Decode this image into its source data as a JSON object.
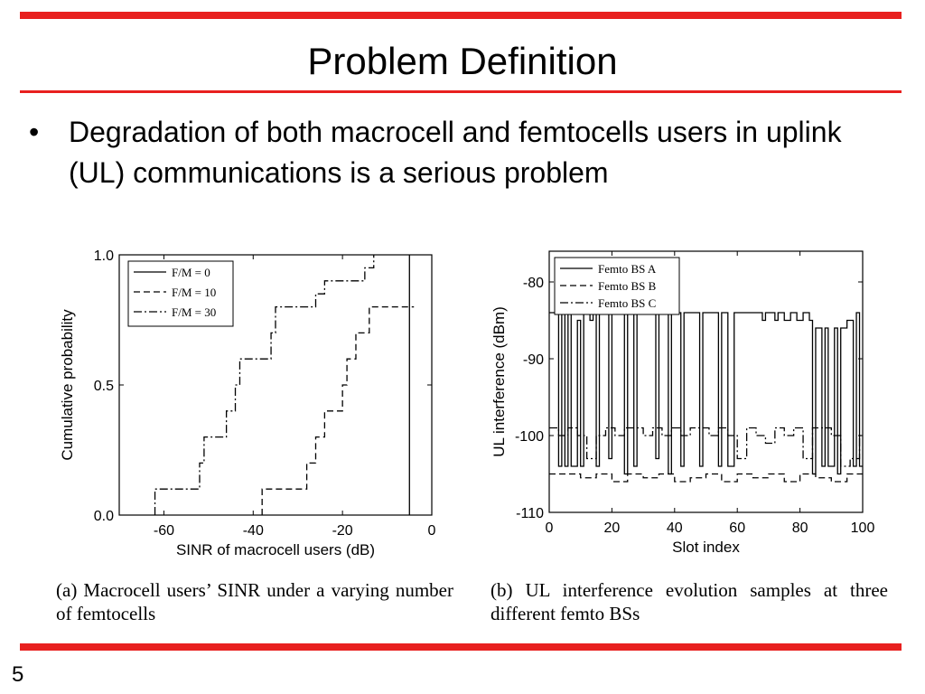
{
  "slide": {
    "title": "Problem Definition",
    "bullet": "Degradation of both macrocell and femtocells users in uplink (UL) communications is a serious problem",
    "page_number": "5",
    "accent_color": "#e8201f"
  },
  "figure_a": {
    "caption": "(a) Macrocell users’ SINR under a varying number of femtocells"
  },
  "figure_b": {
    "caption": "(b) UL interference evolution samples at three different femto BSs"
  },
  "chart_data": [
    {
      "id": "a",
      "type": "line",
      "xlabel": "SINR of macrocell users (dB)",
      "ylabel": "Cumulative probability",
      "xlim": [
        -70,
        0
      ],
      "ylim": [
        0,
        1
      ],
      "xticks": [
        -60,
        -40,
        -20,
        0
      ],
      "yticks": [
        0.0,
        0.5,
        1.0
      ],
      "ytick_labels": [
        "0.0",
        "0.5",
        "1.0"
      ],
      "legend_position": "top-left",
      "series": [
        {
          "name": "F/M = 0",
          "dash": "solid",
          "step": true,
          "x": [
            -5,
            -5
          ],
          "y": [
            0.0,
            1.0
          ]
        },
        {
          "name": "F/M = 10",
          "dash": "dashed",
          "step": true,
          "x": [
            -38,
            -38,
            -28,
            -26,
            -24,
            -20,
            -19,
            -17,
            -14,
            -12,
            -4
          ],
          "y": [
            0.0,
            0.1,
            0.2,
            0.3,
            0.4,
            0.5,
            0.6,
            0.7,
            0.8,
            0.8,
            0.8
          ]
        },
        {
          "name": "F/M = 30",
          "dash": "dashdot",
          "step": true,
          "x": [
            -62,
            -62,
            -52,
            -51,
            -46,
            -44,
            -43,
            -36,
            -35,
            -26,
            -24,
            -17,
            -15,
            -13
          ],
          "y": [
            0.0,
            0.1,
            0.2,
            0.3,
            0.4,
            0.5,
            0.6,
            0.7,
            0.8,
            0.85,
            0.9,
            0.9,
            0.95,
            1.0
          ]
        }
      ]
    },
    {
      "id": "b",
      "type": "line",
      "xlabel": "Slot index",
      "ylabel": "UL interference (dBm)",
      "xlim": [
        0,
        100
      ],
      "ylim": [
        -110,
        -76
      ],
      "xticks": [
        0,
        20,
        40,
        60,
        80,
        100
      ],
      "yticks": [
        -110,
        -100,
        -90,
        -80
      ],
      "legend_position": "top-left",
      "series": [
        {
          "name": "Femto BS A",
          "dash": "solid",
          "step": true,
          "x": [
            0,
            1,
            2,
            3,
            4,
            5,
            6,
            7,
            8,
            9,
            10,
            11,
            12,
            13,
            14,
            15,
            16,
            17,
            18,
            19,
            20,
            21,
            22,
            23,
            24,
            25,
            26,
            27,
            28,
            29,
            30,
            31,
            32,
            33,
            34,
            35,
            36,
            37,
            38,
            39,
            40,
            41,
            42,
            43,
            44,
            45,
            46,
            47,
            48,
            49,
            50,
            51,
            52,
            53,
            54,
            55,
            56,
            57,
            58,
            59,
            60,
            61,
            62,
            63,
            64,
            65,
            66,
            67,
            68,
            69,
            70,
            71,
            72,
            73,
            74,
            75,
            76,
            77,
            78,
            79,
            80,
            81,
            82,
            83,
            84,
            85,
            86,
            87,
            88,
            89,
            90,
            91,
            92,
            93,
            94,
            95,
            96,
            97,
            98,
            99
          ],
          "y": [
            -84,
            -84,
            -84,
            -104,
            -84,
            -104,
            -84,
            -104,
            -104,
            -85,
            -104,
            -84,
            -84,
            -85,
            -84,
            -104,
            -84,
            -84,
            -84,
            -103,
            -84,
            -84,
            -84,
            -84,
            -105,
            -84,
            -84,
            -104,
            -84,
            -84,
            -84,
            -84,
            -84,
            -84,
            -103,
            -84,
            -84,
            -84,
            -105,
            -84,
            -84,
            -84,
            -104,
            -84,
            -84,
            -84,
            -84,
            -84,
            -104,
            -84,
            -84,
            -84,
            -84,
            -84,
            -104,
            -84,
            -84,
            -104,
            -104,
            -84,
            -84,
            -84,
            -84,
            -84,
            -84,
            -84,
            -84,
            -84,
            -85,
            -84,
            -84,
            -84,
            -85,
            -84,
            -84,
            -85,
            -85,
            -84,
            -84,
            -85,
            -85,
            -84,
            -84,
            -85,
            -105,
            -86,
            -86,
            -104,
            -86,
            -104,
            -104,
            -86,
            -105,
            -86,
            -86,
            -85,
            -85,
            -104,
            -84,
            -104
          ]
        },
        {
          "name": "Femto BS B",
          "dash": "dashed",
          "step": true,
          "x": [
            0,
            5,
            10,
            15,
            20,
            25,
            30,
            35,
            40,
            45,
            50,
            55,
            60,
            65,
            70,
            75,
            80,
            85,
            90,
            95,
            100
          ],
          "y": [
            -105,
            -105,
            -105.5,
            -105,
            -106,
            -105,
            -105.5,
            -105,
            -106,
            -105.5,
            -105,
            -106,
            -105,
            -105.5,
            -105,
            -106,
            -105,
            -105.5,
            -106,
            -105,
            -105
          ]
        },
        {
          "name": "Femto BS C",
          "dash": "dashdot",
          "step": true,
          "x": [
            0,
            3,
            6,
            9,
            12,
            15,
            18,
            21,
            24,
            27,
            30,
            33,
            36,
            39,
            42,
            45,
            48,
            51,
            54,
            57,
            60,
            63,
            66,
            69,
            72,
            75,
            78,
            81,
            84,
            87,
            90,
            93,
            96,
            99
          ],
          "y": [
            -99,
            -100,
            -99,
            -100,
            -103,
            -100,
            -99,
            -100,
            -99,
            -99,
            -100,
            -99,
            -100,
            -99,
            -100,
            -99,
            -99,
            -100,
            -99,
            -100,
            -103,
            -99,
            -100,
            -101,
            -99,
            -100,
            -99,
            -103,
            -99,
            -99,
            -100,
            -104,
            -103,
            -100
          ]
        }
      ]
    }
  ]
}
